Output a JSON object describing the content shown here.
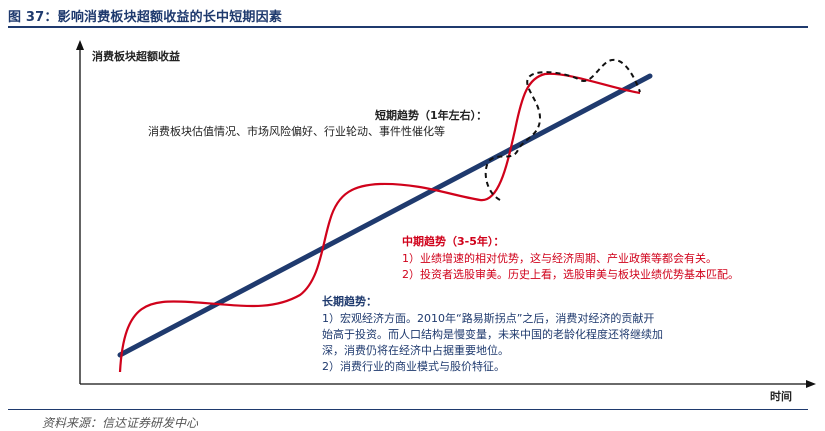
{
  "figure_title": "图 37：影响消费板块超额收益的长中短期因素",
  "source_text": "资料来源：信达证券研发中心",
  "y_axis_label": "消费板块超额收益",
  "x_axis_label": "时间",
  "short_term": {
    "heading": "短期趋势（1年左右）：",
    "line1": "消费板块估值情况、市场风险偏好、行业轮动、事件性催化等"
  },
  "mid_term": {
    "heading": "中期趋势（3-5年）：",
    "line1": "1）业绩增速的相对优势，这与经济周期、产业政策等都会有关。",
    "line2": "2）投资者选股审美。历史上看，选股审美与板块业绩优势基本匹配。"
  },
  "long_term": {
    "heading": "长期趋势：",
    "line1": "1）宏观经济方面。2010年“路易斯拐点”之后，消费对经济的贡献开",
    "line2": "始高于投资。而人口结构是慢变量，未来中国的老龄化程度还将继续加",
    "line3": "深，消费仍将在经济中占据重要地位。",
    "line4": "2）消费行业的商业模式与股价特征。"
  },
  "colors": {
    "title": "#1f3a6e",
    "long_term_line": "#1f3a6e",
    "mid_term_line": "#d0021b",
    "short_term_line": "#111111"
  }
}
